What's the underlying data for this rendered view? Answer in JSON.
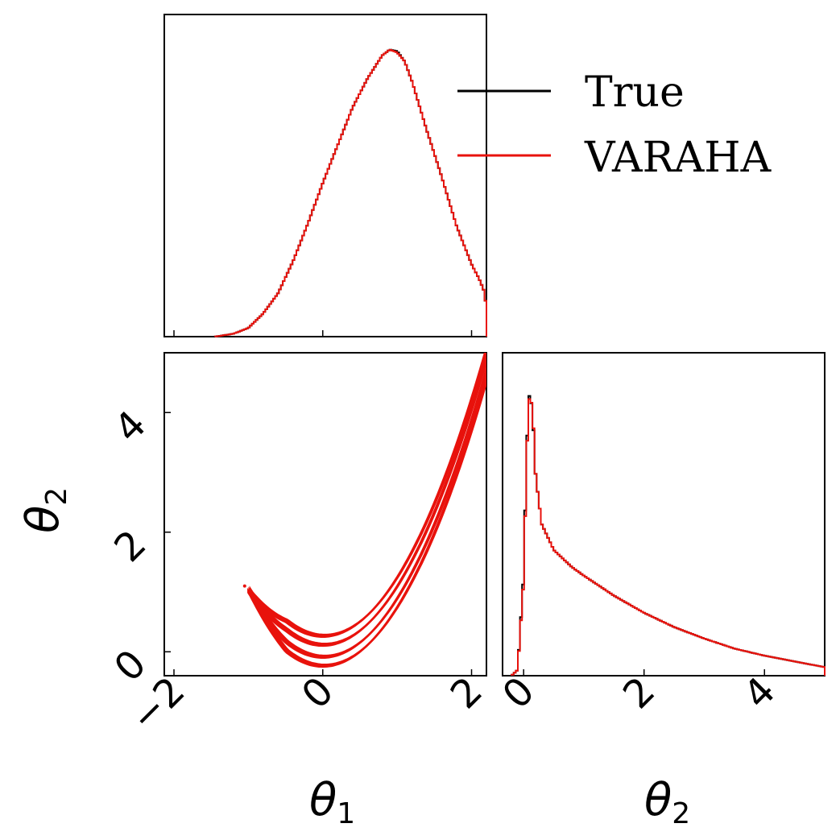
{
  "chart_data": {
    "type": "corner",
    "colors": {
      "true": "#000000",
      "varaha": "#e8120c"
    },
    "legend": {
      "placement": "top-right",
      "entries": [
        "True",
        "VARAHA"
      ]
    },
    "panels": {
      "theta1_marginal": {
        "type": "area",
        "xlim": [
          -2.13,
          2.2
        ],
        "series": [
          {
            "name": "True",
            "x": [
              -1.45,
              -1.2,
              -1.0,
              -0.8,
              -0.6,
              -0.4,
              -0.2,
              0.0,
              0.2,
              0.4,
              0.6,
              0.8,
              0.9,
              1.0,
              1.1,
              1.2,
              1.4,
              1.6,
              1.8,
              2.0,
              2.1,
              2.18,
              2.22
            ],
            "y": [
              0.0,
              0.01,
              0.03,
              0.08,
              0.15,
              0.26,
              0.39,
              0.53,
              0.66,
              0.79,
              0.89,
              0.97,
              0.99,
              0.985,
              0.95,
              0.88,
              0.71,
              0.55,
              0.38,
              0.25,
              0.2,
              0.15,
              0.0
            ]
          },
          {
            "name": "VARAHA",
            "x": [
              -1.45,
              -1.2,
              -1.0,
              -0.8,
              -0.6,
              -0.4,
              -0.2,
              0.0,
              0.2,
              0.4,
              0.6,
              0.8,
              0.9,
              1.0,
              1.1,
              1.2,
              1.4,
              1.6,
              1.8,
              2.0,
              2.1,
              2.18,
              2.22
            ],
            "y": [
              0.0,
              0.01,
              0.03,
              0.08,
              0.15,
              0.26,
              0.39,
              0.53,
              0.66,
              0.79,
              0.89,
              0.97,
              0.99,
              0.98,
              0.95,
              0.88,
              0.71,
              0.55,
              0.38,
              0.25,
              0.2,
              0.15,
              0.0
            ]
          }
        ]
      },
      "joint": {
        "type": "line",
        "xlabel_sym": "θ",
        "xlabel_sub": "1",
        "ylabel_sym": "θ",
        "ylabel_sub": "2",
        "xlim": [
          -2.13,
          2.2
        ],
        "ylim": [
          -0.4,
          5.0
        ],
        "xticks": [
          "−2",
          "0",
          "2"
        ],
        "xtick_values": [
          -2,
          0,
          2
        ],
        "yticks": [
          "0",
          "2",
          "4"
        ],
        "ytick_values": [
          0,
          2,
          4
        ],
        "contour_widths": [
          0.1,
          0.25
        ],
        "contour_curve": "theta2 = theta1^2",
        "contour_theta1_range": [
          -1.0,
          2.25
        ],
        "outlier_point": {
          "x": -1.05,
          "y": 1.1
        }
      },
      "theta2_marginal": {
        "type": "area",
        "xlabel_sym": "θ",
        "xlabel_sub": "2",
        "xlim": [
          -0.35,
          5.0
        ],
        "xticks": [
          "0",
          "2",
          "4"
        ],
        "xtick_values": [
          0,
          2,
          4
        ],
        "series": [
          {
            "name": "True",
            "x": [
              -0.2,
              -0.1,
              0.0,
              0.05,
              0.1,
              0.15,
              0.2,
              0.3,
              0.5,
              0.8,
              1.0,
              1.5,
              2.0,
              2.5,
              3.0,
              3.5,
              4.0,
              4.5,
              5.0
            ],
            "y": [
              0.0,
              0.02,
              0.35,
              0.8,
              1.0,
              0.92,
              0.7,
              0.53,
              0.44,
              0.38,
              0.35,
              0.28,
              0.22,
              0.17,
              0.13,
              0.095,
              0.07,
              0.05,
              0.03
            ]
          },
          {
            "name": "VARAHA",
            "x": [
              -0.2,
              -0.1,
              0.0,
              0.05,
              0.1,
              0.15,
              0.2,
              0.3,
              0.5,
              0.8,
              1.0,
              1.5,
              2.0,
              2.5,
              3.0,
              3.5,
              4.0,
              4.5,
              5.0
            ],
            "y": [
              0.0,
              0.02,
              0.33,
              0.78,
              0.99,
              0.93,
              0.7,
              0.53,
              0.44,
              0.38,
              0.35,
              0.28,
              0.22,
              0.17,
              0.13,
              0.095,
              0.07,
              0.05,
              0.03
            ]
          }
        ]
      }
    }
  }
}
